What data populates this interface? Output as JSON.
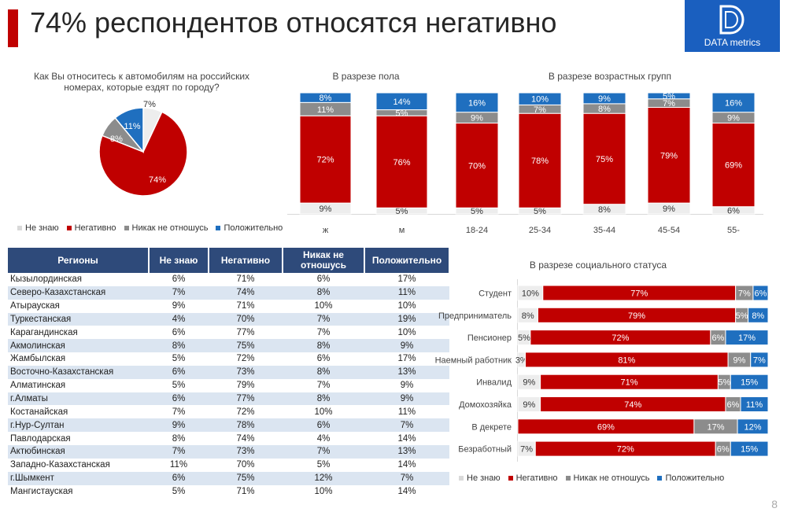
{
  "header": {
    "title": "74% респондентов относятся негативно",
    "logo_text": "DATA metrics"
  },
  "colors": {
    "no_idea": "#ededed",
    "negative": "#c00000",
    "neutral": "#8c8c8c",
    "positive": "#1f6fbf",
    "header_bg": "#2e4a7a",
    "accent": "#c00000",
    "logo_bg": "#1a5fbf"
  },
  "legend": [
    "Не знаю",
    "Негативно",
    "Никак не отношусь",
    "Положительно"
  ],
  "chart_data": [
    {
      "type": "pie",
      "title": "Как Вы относитесь к автомобилям на российских номерах, которые ездят по городу?",
      "categories": [
        "Не знаю",
        "Негативно",
        "Никак не отношусь",
        "Положительно"
      ],
      "values": [
        7,
        74,
        8,
        11
      ],
      "labels": [
        "7%",
        "74%",
        "8%",
        "11%"
      ]
    },
    {
      "type": "bar",
      "stacked": true,
      "title": "В разрезе пола",
      "categories": [
        "ж",
        "м"
      ],
      "series": [
        {
          "name": "Не знаю",
          "values": [
            9,
            5
          ]
        },
        {
          "name": "Негативно",
          "values": [
            72,
            76
          ]
        },
        {
          "name": "Никак не отношусь",
          "values": [
            11,
            5
          ]
        },
        {
          "name": "Положительно",
          "values": [
            8,
            14
          ]
        }
      ]
    },
    {
      "type": "bar",
      "stacked": true,
      "title": "В разрезе возрастных групп",
      "categories": [
        "18-24",
        "25-34",
        "35-44",
        "45-54",
        "55-"
      ],
      "series": [
        {
          "name": "Не знаю",
          "values": [
            5,
            5,
            8,
            9,
            6
          ]
        },
        {
          "name": "Негативно",
          "values": [
            70,
            78,
            75,
            79,
            69
          ]
        },
        {
          "name": "Никак не отношусь",
          "values": [
            9,
            7,
            8,
            7,
            9
          ]
        },
        {
          "name": "Положительно",
          "values": [
            16,
            10,
            9,
            5,
            16
          ]
        }
      ]
    },
    {
      "type": "bar",
      "stacked": true,
      "orientation": "horizontal",
      "title": "В разрезе социального статуса",
      "categories": [
        "Студент",
        "Предприниматель",
        "Пенсионер",
        "Наемный работник",
        "Инвалид",
        "Домохозяйка",
        "В декрете",
        "Безработный"
      ],
      "series": [
        {
          "name": "Не знаю",
          "values": [
            10,
            8,
            5,
            3,
            9,
            9,
            0,
            7
          ]
        },
        {
          "name": "Негативно",
          "values": [
            77,
            79,
            72,
            81,
            71,
            74,
            69,
            72
          ]
        },
        {
          "name": "Никак не отношусь",
          "values": [
            7,
            5,
            6,
            9,
            5,
            6,
            17,
            6
          ]
        },
        {
          "name": "Положительно",
          "values": [
            6,
            8,
            17,
            7,
            15,
            11,
            12,
            15
          ]
        }
      ]
    },
    {
      "type": "table",
      "columns": [
        "Регионы",
        "Не знаю",
        "Негативно",
        "Никак не отношусь",
        "Положительно"
      ],
      "rows": [
        [
          "Кызылординская",
          "6%",
          "71%",
          "6%",
          "17%"
        ],
        [
          "Северо-Казахстанская",
          "7%",
          "74%",
          "8%",
          "11%"
        ],
        [
          "Атырауская",
          "9%",
          "71%",
          "10%",
          "10%"
        ],
        [
          "Туркестанская",
          "4%",
          "70%",
          "7%",
          "19%"
        ],
        [
          "Карагандинская",
          "6%",
          "77%",
          "7%",
          "10%"
        ],
        [
          "Акмолинская",
          "8%",
          "75%",
          "8%",
          "9%"
        ],
        [
          "Жамбылская",
          "5%",
          "72%",
          "6%",
          "17%"
        ],
        [
          "Восточно-Казахстанская",
          "6%",
          "73%",
          "8%",
          "13%"
        ],
        [
          "Алматинская",
          "5%",
          "79%",
          "7%",
          "9%"
        ],
        [
          "г.Алматы",
          "6%",
          "77%",
          "8%",
          "9%"
        ],
        [
          "Костанайская",
          "7%",
          "72%",
          "10%",
          "11%"
        ],
        [
          "г.Нур-Султан",
          "9%",
          "78%",
          "6%",
          "7%"
        ],
        [
          "Павлодарская",
          "8%",
          "74%",
          "4%",
          "14%"
        ],
        [
          "Актюбинская",
          "7%",
          "73%",
          "7%",
          "13%"
        ],
        [
          "Западно-Казахстанская",
          "11%",
          "70%",
          "5%",
          "14%"
        ],
        [
          "г.Шымкент",
          "6%",
          "75%",
          "12%",
          "7%"
        ],
        [
          "Мангистауская",
          "5%",
          "71%",
          "10%",
          "14%"
        ]
      ]
    }
  ],
  "page_number": "8"
}
